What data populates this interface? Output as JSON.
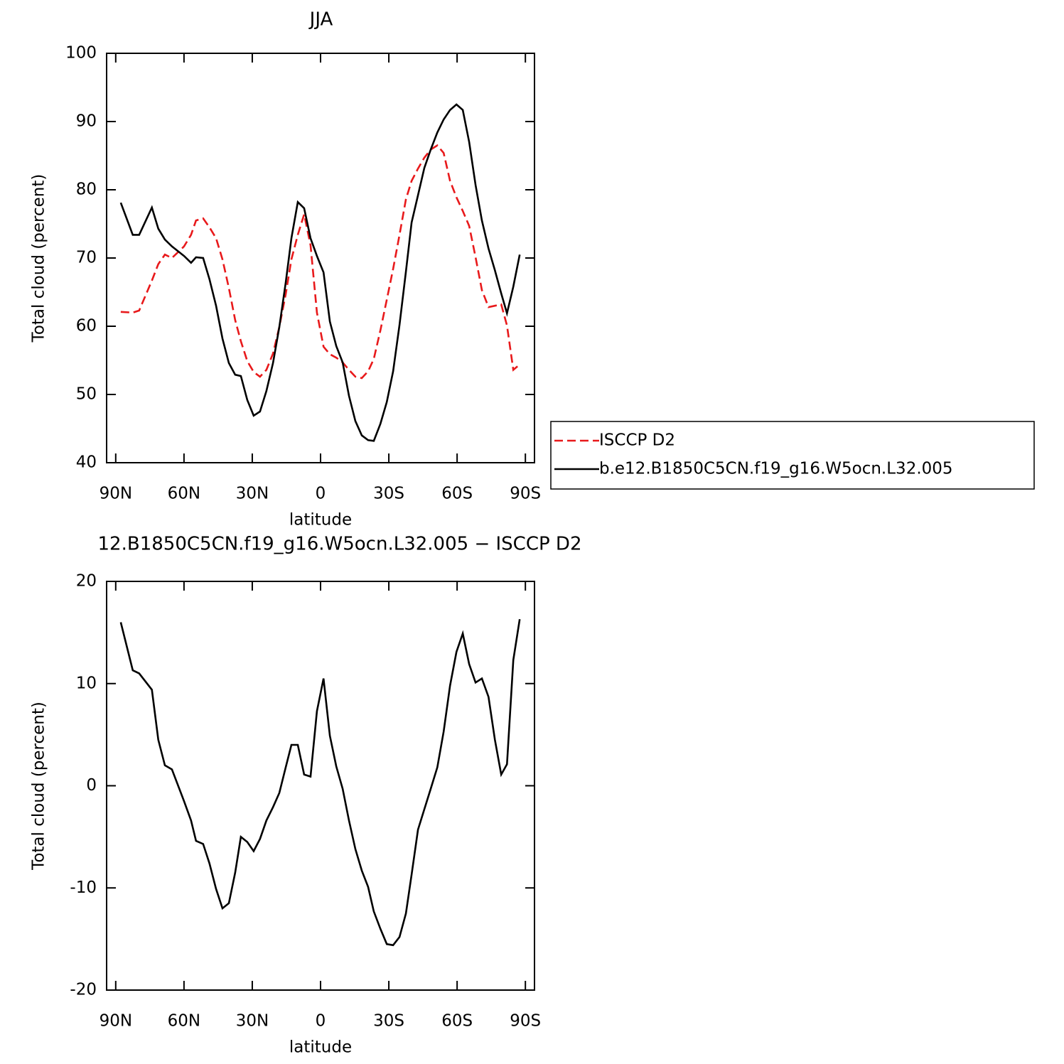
{
  "chart_data": [
    {
      "type": "line",
      "title": "JJA",
      "ylabel": "Total cloud (percent)",
      "xlabel": "latitude",
      "x": [
        87.8,
        82.5,
        79.7,
        74.1,
        71.3,
        68.4,
        65.3,
        60,
        56.9,
        54.7,
        51.6,
        48.8,
        45.9,
        43.1,
        40.3,
        37.5,
        35,
        32.2,
        29.4,
        26.6,
        23.8,
        20.9,
        18.1,
        15.3,
        12.8,
        10,
        7.2,
        4.4,
        1.6,
        -1.3,
        -4.1,
        -6.9,
        -9.7,
        -12.5,
        -15.3,
        -18.1,
        -20.9,
        -23.4,
        -26.3,
        -29.1,
        -31.9,
        -34.7,
        -37.5,
        -40,
        -42.8,
        -45.6,
        -48.4,
        -51.3,
        -54.1,
        -56.9,
        -59.7,
        -62.5,
        -65.3,
        -68.1,
        -70.9,
        -73.8,
        -76.6,
        -79.4,
        -81.9,
        -84.7,
        -87.5
      ],
      "series": [
        {
          "name": "ISCCP D2",
          "color": "#e8191b",
          "style": "dashed",
          "values": [
            62.1,
            62.0,
            62.3,
            66.7,
            69.1,
            70.5,
            70,
            71.7,
            73.4,
            75.5,
            75.8,
            74.5,
            72.9,
            69.8,
            65.6,
            60.9,
            57.8,
            54.9,
            53.3,
            52.6,
            53.6,
            56,
            59.9,
            64.7,
            69.8,
            73.4,
            76.4,
            71.9,
            62,
            57,
            55.9,
            55.4,
            54.7,
            53.6,
            52.6,
            52.4,
            53.4,
            55.2,
            59.4,
            63.9,
            68.4,
            73.4,
            78.6,
            81.3,
            83.1,
            84.7,
            85.9,
            86.5,
            85.4,
            81.3,
            78.9,
            76.9,
            74.7,
            70.1,
            65.3,
            62.8,
            63,
            63.2,
            60.1,
            53.6,
            54.4
          ]
        },
        {
          "name": "b.e12.B1850C5CN.f19_g16.W5ocn.L32.005",
          "color": "#000000",
          "style": "solid",
          "values": [
            78.1,
            73.4,
            73.4,
            77.4,
            74.3,
            72.7,
            71.7,
            70.3,
            69.3,
            70.1,
            70,
            66.9,
            63,
            58.2,
            54.6,
            52.9,
            52.7,
            49.2,
            46.9,
            47.5,
            50.5,
            54.6,
            59.9,
            66.4,
            72.9,
            78.2,
            77.3,
            72.9,
            70.3,
            67.9,
            60.7,
            57.1,
            54.7,
            49.8,
            46.1,
            44,
            43.3,
            43.2,
            45.7,
            48.9,
            53.4,
            60.2,
            68,
            75.2,
            79.2,
            83.2,
            85.9,
            88.4,
            90.3,
            91.7,
            92.5,
            91.7,
            87,
            80.7,
            75.5,
            71.4,
            68.2,
            64.8,
            61.9,
            65.8,
            70.5
          ]
        }
      ],
      "xlim": [
        94,
        -94
      ],
      "xticks": [
        {
          "value": 90,
          "label": "90N"
        },
        {
          "value": 60,
          "label": "60N"
        },
        {
          "value": 30,
          "label": "30N"
        },
        0,
        {
          "value": -30,
          "label": "30S"
        },
        {
          "value": -60,
          "label": "60S"
        },
        {
          "value": -90,
          "label": "90S"
        }
      ],
      "ylim": [
        40,
        100
      ],
      "yticks": [
        40,
        50,
        60,
        70,
        80,
        90,
        100
      ],
      "legend": "right"
    },
    {
      "type": "line",
      "title": "12.B1850C5CN.f19_g16.W5ocn.L32.005 − ISCCP D2",
      "ylabel": "Total cloud (percent)",
      "xlabel": "latitude",
      "x": [
        87.8,
        82.5,
        79.7,
        74.1,
        71.3,
        68.4,
        65.3,
        60,
        56.9,
        54.7,
        51.6,
        48.8,
        45.9,
        43.1,
        40.3,
        37.5,
        35,
        32.2,
        29.4,
        26.6,
        23.8,
        20.9,
        18.1,
        15.3,
        12.8,
        10,
        7.2,
        4.4,
        1.6,
        -1.3,
        -4.1,
        -6.9,
        -9.7,
        -12.5,
        -15.3,
        -18.1,
        -20.9,
        -23.4,
        -26.3,
        -29.1,
        -31.9,
        -34.7,
        -37.5,
        -40,
        -42.8,
        -45.6,
        -48.4,
        -51.3,
        -54.1,
        -56.9,
        -59.7,
        -62.5,
        -65.3,
        -68.1,
        -70.9,
        -73.8,
        -76.6,
        -79.4,
        -81.9,
        -84.7,
        -87.5
      ],
      "color": "#000000",
      "values": [
        16,
        11.3,
        11,
        9.4,
        4.5,
        2,
        1.6,
        -1.5,
        -3.4,
        -5.4,
        -5.7,
        -7.6,
        -10.1,
        -12,
        -11.5,
        -8.5,
        -5,
        -5.5,
        -6.4,
        -5.2,
        -3.4,
        -2.1,
        -0.7,
        1.8,
        4,
        4,
        1.1,
        0.9,
        7.3,
        10.5,
        4.9,
        1.9,
        -0.3,
        -3.4,
        -6.2,
        -8.3,
        -9.9,
        -12.3,
        -14,
        -15.5,
        -15.6,
        -14.8,
        -12.5,
        -8.7,
        -4.3,
        -2.3,
        -0.3,
        1.8,
        5.3,
        9.8,
        13.1,
        14.9,
        11.9,
        10.1,
        10.5,
        8.7,
        4.5,
        1.1,
        2.1,
        12.3,
        16.3
      ],
      "xlim": [
        94,
        -94
      ],
      "xticks": [
        {
          "value": 90,
          "label": "90N"
        },
        {
          "value": 60,
          "label": "60N"
        },
        {
          "value": 30,
          "label": "30N"
        },
        0,
        {
          "value": -30,
          "label": "30S"
        },
        {
          "value": -60,
          "label": "60S"
        },
        {
          "value": -90,
          "label": "90S"
        }
      ],
      "ylim": [
        -20,
        20
      ],
      "yticks": [
        -20,
        -10,
        0,
        10,
        20
      ]
    }
  ]
}
